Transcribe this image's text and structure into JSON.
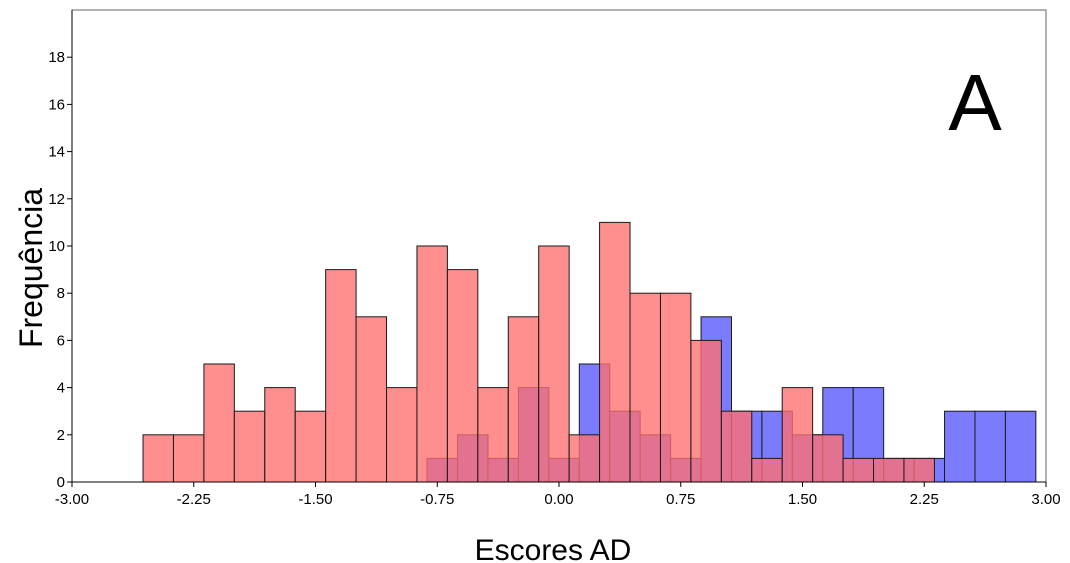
{
  "chart_data": {
    "type": "bar",
    "subtype": "overlapping-histogram",
    "panel_label": "A",
    "xlabel": "Escores AD",
    "ylabel": "Frequência",
    "xlim": [
      -3.0,
      3.0
    ],
    "ylim": [
      0,
      20
    ],
    "x_ticks": [
      -3.0,
      -2.25,
      -1.5,
      -0.75,
      0.0,
      0.75,
      1.5,
      2.25,
      3.0
    ],
    "x_tick_labels": [
      "-3.00",
      "-2.25",
      "-1.50",
      "-0.75",
      "0.00",
      "0.75",
      "1.50",
      "2.25",
      "3.00"
    ],
    "y_ticks": [
      0,
      2,
      4,
      6,
      8,
      10,
      12,
      14,
      16,
      18
    ],
    "y_tick_labels": [
      "0",
      "2",
      "4",
      "6",
      "8",
      "10",
      "12",
      "14",
      "16",
      "18"
    ],
    "grid": false,
    "legend": "none",
    "bin_width": 0.1875,
    "series": [
      {
        "color": "#7b7bfd",
        "bins": [
          {
            "x0": -0.8125,
            "value": 1
          },
          {
            "x0": -0.625,
            "value": 2
          },
          {
            "x0": -0.4375,
            "value": 1
          },
          {
            "x0": -0.25,
            "value": 4
          },
          {
            "x0": -0.0625,
            "value": 1
          },
          {
            "x0": 0.125,
            "value": 5
          },
          {
            "x0": 0.3125,
            "value": 3
          },
          {
            "x0": 0.5,
            "value": 2
          },
          {
            "x0": 0.6875,
            "value": 1
          },
          {
            "x0": 0.875,
            "value": 7
          },
          {
            "x0": 1.0625,
            "value": 3
          },
          {
            "x0": 1.25,
            "value": 3
          },
          {
            "x0": 1.4375,
            "value": 2
          },
          {
            "x0": 1.625,
            "value": 4
          },
          {
            "x0": 1.8125,
            "value": 4
          },
          {
            "x0": 2.0,
            "value": 1
          },
          {
            "x0": 2.1875,
            "value": 1
          },
          {
            "x0": 2.375,
            "value": 3
          },
          {
            "x0": 2.5625,
            "value": 3
          },
          {
            "x0": 2.75,
            "value": 3
          }
        ]
      },
      {
        "color": "#ff7070",
        "bins": [
          {
            "x0": -2.5625,
            "value": 2
          },
          {
            "x0": -2.375,
            "value": 2
          },
          {
            "x0": -2.1875,
            "value": 5
          },
          {
            "x0": -2.0,
            "value": 3
          },
          {
            "x0": -1.8125,
            "value": 4
          },
          {
            "x0": -1.625,
            "value": 3
          },
          {
            "x0": -1.4375,
            "value": 9
          },
          {
            "x0": -1.25,
            "value": 7
          },
          {
            "x0": -1.0625,
            "value": 4
          },
          {
            "x0": -0.875,
            "value": 10
          },
          {
            "x0": -0.6875,
            "value": 9
          },
          {
            "x0": -0.5,
            "value": 4
          },
          {
            "x0": -0.3125,
            "value": 7
          },
          {
            "x0": -0.125,
            "value": 10
          },
          {
            "x0": 0.0625,
            "value": 2
          },
          {
            "x0": 0.25,
            "value": 11
          },
          {
            "x0": 0.4375,
            "value": 8
          },
          {
            "x0": 0.625,
            "value": 8
          },
          {
            "x0": 0.8125,
            "value": 6
          },
          {
            "x0": 1.0,
            "value": 3
          },
          {
            "x0": 1.1875,
            "value": 1
          },
          {
            "x0": 1.375,
            "value": 4
          },
          {
            "x0": 1.5625,
            "value": 2
          },
          {
            "x0": 1.75,
            "value": 1
          },
          {
            "x0": 1.9375,
            "value": 1
          },
          {
            "x0": 2.125,
            "value": 1
          }
        ]
      }
    ]
  }
}
